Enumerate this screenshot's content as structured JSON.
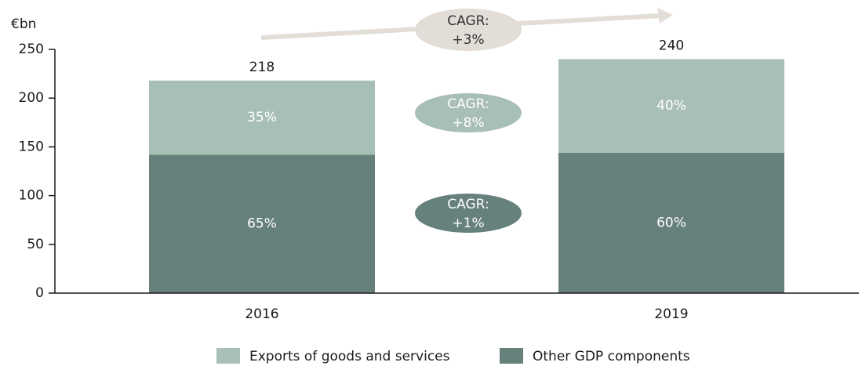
{
  "chart_data": {
    "type": "stacked_bar",
    "y_unit": "€bn",
    "categories": [
      "2016",
      "2019"
    ],
    "series": [
      {
        "name": "Other GDP components",
        "color": "#66807c",
        "values": [
          142,
          144
        ],
        "percent_labels": [
          "65%",
          "60%"
        ]
      },
      {
        "name": "Exports of goods and services",
        "color": "#a8bfb5",
        "values": [
          76,
          96
        ],
        "percent_labels": [
          "35%",
          "40%"
        ]
      }
    ],
    "totals": [
      218,
      240
    ],
    "ylim": [
      0,
      250
    ],
    "yticks": [
      0,
      50,
      100,
      150,
      200,
      250
    ],
    "annotations": [
      {
        "lines": [
          "CAGR:",
          "+3%"
        ],
        "color": "#e3ddd8",
        "text_color": "#333333"
      },
      {
        "lines": [
          "CAGR:",
          "+8%"
        ],
        "color": "#a8bfb5",
        "text_color": "#ffffff"
      },
      {
        "lines": [
          "CAGR:",
          "+1%"
        ],
        "color": "#66807c",
        "text_color": "#ffffff"
      }
    ],
    "legend": "bottom"
  }
}
